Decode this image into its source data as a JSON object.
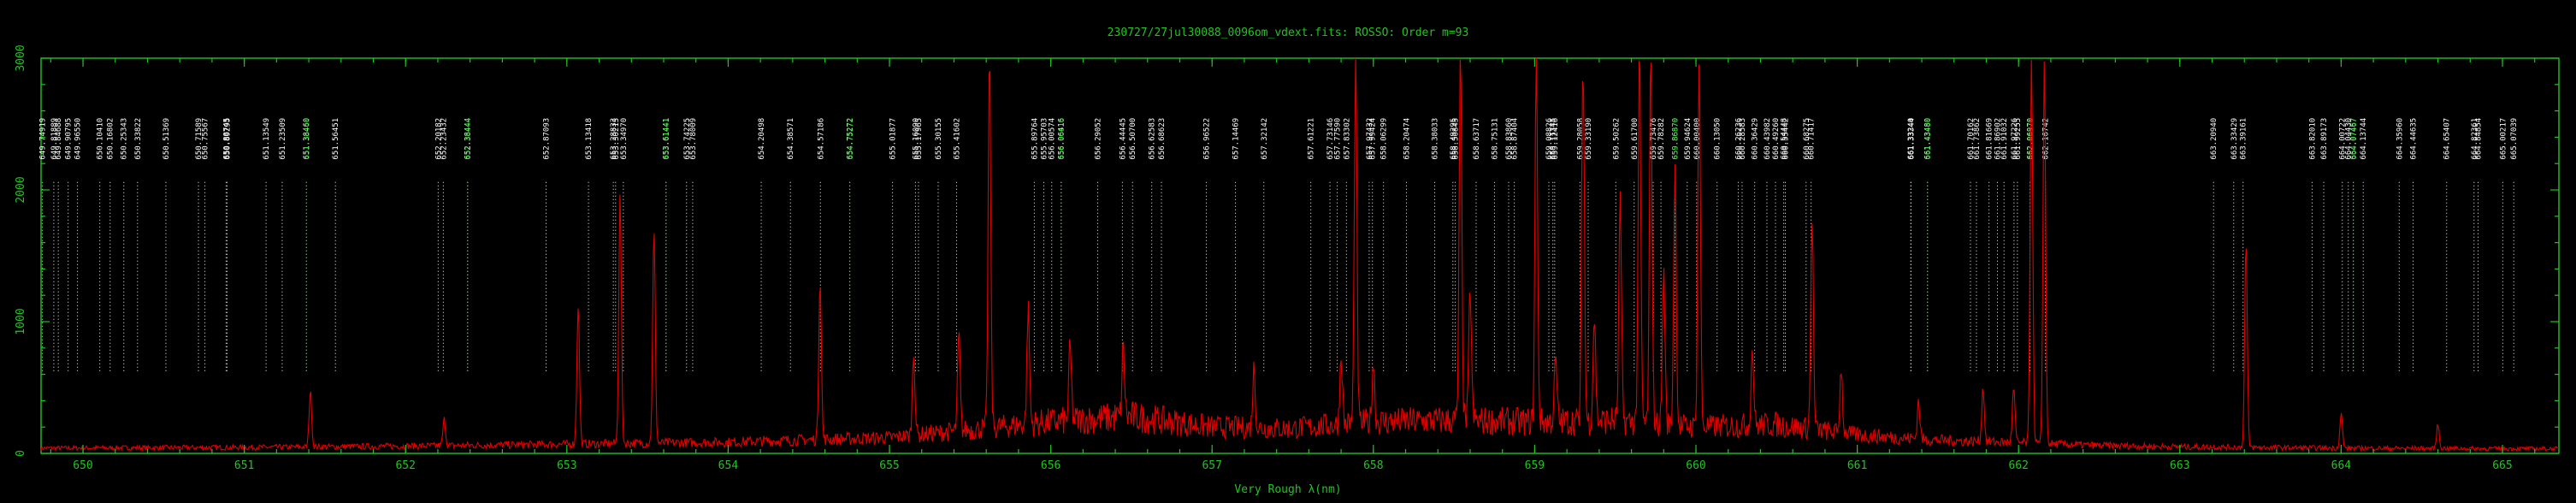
{
  "chart_data": {
    "type": "line",
    "title": "230727/27jul30088_0096om_vdext.fits: ROSSO: Order m=93",
    "xlabel": "Very Rough λ(nm)",
    "ylabel": "",
    "xlim": [
      649.74,
      665.35
    ],
    "ylim": [
      0,
      3000
    ],
    "x_ticks": [
      650,
      651,
      652,
      653,
      654,
      655,
      656,
      657,
      658,
      659,
      660,
      661,
      662,
      663,
      664,
      665
    ],
    "y_ticks": [
      0,
      1000,
      2000,
      3000
    ],
    "colors": {
      "frame": "#22c322",
      "spectrum": "#e00000",
      "line_labels": "#ffffff",
      "highlight_labels": "#2ee02e"
    },
    "grid": false,
    "continuum": [
      [
        649.74,
        40
      ],
      [
        651,
        45
      ],
      [
        652,
        55
      ],
      [
        653,
        70
      ],
      [
        654,
        85
      ],
      [
        655,
        120
      ],
      [
        656,
        240
      ],
      [
        656.5,
        280
      ],
      [
        657,
        200
      ],
      [
        657.5,
        190
      ],
      [
        658,
        240
      ],
      [
        658.5,
        250
      ],
      [
        659,
        240
      ],
      [
        659.5,
        250
      ],
      [
        660,
        200
      ],
      [
        660.5,
        220
      ],
      [
        661,
        140
      ],
      [
        661.5,
        100
      ],
      [
        662,
        80
      ],
      [
        662.5,
        60
      ],
      [
        663,
        50
      ],
      [
        664,
        40
      ],
      [
        665.35,
        35
      ]
    ],
    "emission_lines": [
      [
        651.41,
        470
      ],
      [
        652.24,
        260
      ],
      [
        653.07,
        1130
      ],
      [
        653.33,
        1950
      ],
      [
        653.54,
        1690
      ],
      [
        654.57,
        1330
      ],
      [
        655.15,
        770
      ],
      [
        655.43,
        900
      ],
      [
        655.62,
        3000
      ],
      [
        655.86,
        1100
      ],
      [
        656.12,
        800
      ],
      [
        656.45,
        800
      ],
      [
        657.26,
        650
      ],
      [
        657.8,
        750
      ],
      [
        657.89,
        3000
      ],
      [
        658.0,
        700
      ],
      [
        658.54,
        3000
      ],
      [
        658.6,
        1250
      ],
      [
        659.01,
        3000
      ],
      [
        659.13,
        700
      ],
      [
        659.3,
        3000
      ],
      [
        659.37,
        1050
      ],
      [
        659.53,
        1900
      ],
      [
        659.65,
        3000
      ],
      [
        659.72,
        3000
      ],
      [
        659.8,
        1400
      ],
      [
        659.87,
        2200
      ],
      [
        660.02,
        3000
      ],
      [
        660.35,
        800
      ],
      [
        660.72,
        1800
      ],
      [
        660.9,
        650
      ],
      [
        661.38,
        400
      ],
      [
        661.78,
        500
      ],
      [
        661.97,
        500
      ],
      [
        662.08,
        3000
      ],
      [
        662.16,
        3000
      ],
      [
        663.41,
        1600
      ],
      [
        664.0,
        300
      ],
      [
        664.6,
        220
      ]
    ],
    "line_markers": [
      {
        "label": "649.74919",
        "x": 649.749
      },
      {
        "label": "649.81889",
        "x": 649.819
      },
      {
        "label": "649.84688",
        "x": 649.847
      },
      {
        "label": "649.90795",
        "x": 649.908
      },
      {
        "label": "649.96550",
        "x": 649.966
      },
      {
        "label": "650.10410",
        "x": 650.104
      },
      {
        "label": "650.16802",
        "x": 650.168
      },
      {
        "label": "650.25343",
        "x": 650.253
      },
      {
        "label": "650.33822",
        "x": 650.338
      },
      {
        "label": "650.51369",
        "x": 650.514
      },
      {
        "label": "650.71589",
        "x": 650.716
      },
      {
        "label": "650.75567",
        "x": 650.756
      },
      {
        "label": "650.88745",
        "x": 650.887
      },
      {
        "label": "650.89295",
        "x": 650.893
      },
      {
        "label": "651.13549",
        "x": 651.135
      },
      {
        "label": "651.23509",
        "x": 651.235
      },
      {
        "label": "651.38460",
        "x": 651.385
      },
      {
        "label": "651.38460",
        "x": 651.386,
        "green": true
      },
      {
        "label": "651.56451",
        "x": 651.565
      },
      {
        "label": "652.20182",
        "x": 652.202
      },
      {
        "label": "652.23432",
        "x": 652.234
      },
      {
        "label": "652.38444",
        "x": 652.384
      },
      {
        "label": "652.38444",
        "x": 652.386,
        "green": true
      },
      {
        "label": "652.87093",
        "x": 652.871
      },
      {
        "label": "653.13418",
        "x": 653.134
      },
      {
        "label": "653.28833",
        "x": 653.288
      },
      {
        "label": "653.30215",
        "x": 653.302
      },
      {
        "label": "653.34970",
        "x": 653.35
      },
      {
        "label": "653.61441",
        "x": 653.614
      },
      {
        "label": "653.61441",
        "x": 653.616,
        "green": true
      },
      {
        "label": "653.74225",
        "x": 653.742
      },
      {
        "label": "653.78009",
        "x": 653.78
      },
      {
        "label": "654.20498",
        "x": 654.205
      },
      {
        "label": "654.38571",
        "x": 654.386
      },
      {
        "label": "654.57186",
        "x": 654.572
      },
      {
        "label": "654.75272",
        "x": 654.753
      },
      {
        "label": "654.75272",
        "x": 654.755,
        "green": true
      },
      {
        "label": "655.01877",
        "x": 655.019
      },
      {
        "label": "655.16090",
        "x": 655.161
      },
      {
        "label": "655.17965",
        "x": 655.18
      },
      {
        "label": "655.30155",
        "x": 655.302
      },
      {
        "label": "655.41602",
        "x": 655.416
      },
      {
        "label": "655.89764",
        "x": 655.898
      },
      {
        "label": "655.95703",
        "x": 655.957
      },
      {
        "label": "656.00574",
        "x": 656.006
      },
      {
        "label": "656.06416",
        "x": 656.064
      },
      {
        "label": "656.06616",
        "x": 656.066,
        "green": true
      },
      {
        "label": "656.29052",
        "x": 656.291
      },
      {
        "label": "656.44445",
        "x": 656.444
      },
      {
        "label": "656.50700",
        "x": 656.507
      },
      {
        "label": "656.62583",
        "x": 656.626
      },
      {
        "label": "656.68623",
        "x": 656.686
      },
      {
        "label": "656.96522",
        "x": 656.965
      },
      {
        "label": "657.14469",
        "x": 657.145
      },
      {
        "label": "657.32142",
        "x": 657.321
      },
      {
        "label": "657.61221",
        "x": 657.612
      },
      {
        "label": "657.73146",
        "x": 657.731
      },
      {
        "label": "657.77590",
        "x": 657.776
      },
      {
        "label": "657.83302",
        "x": 657.833
      },
      {
        "label": "657.97432",
        "x": 657.974
      },
      {
        "label": "657.99424",
        "x": 657.994
      },
      {
        "label": "658.06299",
        "x": 658.063
      },
      {
        "label": "658.20474",
        "x": 658.205
      },
      {
        "label": "658.38033",
        "x": 658.38
      },
      {
        "label": "658.49295",
        "x": 658.493
      },
      {
        "label": "658.50845",
        "x": 658.508
      },
      {
        "label": "658.63717",
        "x": 658.637
      },
      {
        "label": "658.75131",
        "x": 658.751
      },
      {
        "label": "658.83860",
        "x": 658.839
      },
      {
        "label": "658.87404",
        "x": 658.874
      },
      {
        "label": "659.08826",
        "x": 659.088
      },
      {
        "label": "659.11345",
        "x": 659.113
      },
      {
        "label": "659.12416",
        "x": 659.124
      },
      {
        "label": "659.28058",
        "x": 659.281
      },
      {
        "label": "659.33190",
        "x": 659.332
      },
      {
        "label": "659.50262",
        "x": 659.503
      },
      {
        "label": "659.61700",
        "x": 659.617
      },
      {
        "label": "659.73476",
        "x": 659.735
      },
      {
        "label": "659.78282",
        "x": 659.783
      },
      {
        "label": "659.86870",
        "x": 659.869
      },
      {
        "label": "659.86870",
        "x": 659.871,
        "green": true
      },
      {
        "label": "659.94624",
        "x": 659.946
      },
      {
        "label": "660.00400",
        "x": 660.004
      },
      {
        "label": "660.13050",
        "x": 660.131
      },
      {
        "label": "660.26236",
        "x": 660.262
      },
      {
        "label": "660.28583",
        "x": 660.286
      },
      {
        "label": "660.36429",
        "x": 660.364
      },
      {
        "label": "660.43982",
        "x": 660.44
      },
      {
        "label": "660.49260",
        "x": 660.493
      },
      {
        "label": "660.54448",
        "x": 660.544
      },
      {
        "label": "660.55442",
        "x": 660.554
      },
      {
        "label": "660.68275",
        "x": 660.683
      },
      {
        "label": "660.71417",
        "x": 660.714
      },
      {
        "label": "661.33240",
        "x": 661.332
      },
      {
        "label": "661.33344",
        "x": 661.333
      },
      {
        "label": "661.43480",
        "x": 661.435
      },
      {
        "label": "661.43480",
        "x": 661.437,
        "green": true
      },
      {
        "label": "661.70162",
        "x": 661.702
      },
      {
        "label": "661.73862",
        "x": 661.739
      },
      {
        "label": "661.81669",
        "x": 661.817
      },
      {
        "label": "661.86902",
        "x": 661.869
      },
      {
        "label": "661.91032",
        "x": 661.91
      },
      {
        "label": "661.97226",
        "x": 661.972
      },
      {
        "label": "661.99255",
        "x": 661.993
      },
      {
        "label": "662.06970",
        "x": 662.07
      },
      {
        "label": "662.06970",
        "x": 662.072,
        "green": true
      },
      {
        "label": "662.16742",
        "x": 662.167
      },
      {
        "label": "663.20940",
        "x": 663.209
      },
      {
        "label": "663.33429",
        "x": 663.334
      },
      {
        "label": "663.39161",
        "x": 663.392
      },
      {
        "label": "663.82010",
        "x": 663.82
      },
      {
        "label": "663.89173",
        "x": 663.892
      },
      {
        "label": "664.00722",
        "x": 664.007
      },
      {
        "label": "664.04430",
        "x": 664.044
      },
      {
        "label": "664.07467",
        "x": 664.075
      },
      {
        "label": "664.07467",
        "x": 664.077,
        "green": true
      },
      {
        "label": "664.13744",
        "x": 664.137
      },
      {
        "label": "664.35960",
        "x": 664.36
      },
      {
        "label": "664.44635",
        "x": 664.446
      },
      {
        "label": "664.65407",
        "x": 664.654
      },
      {
        "label": "664.82361",
        "x": 664.824
      },
      {
        "label": "664.84854",
        "x": 664.849
      },
      {
        "label": "665.00217",
        "x": 665.002
      },
      {
        "label": "665.07039",
        "x": 665.07
      }
    ]
  }
}
